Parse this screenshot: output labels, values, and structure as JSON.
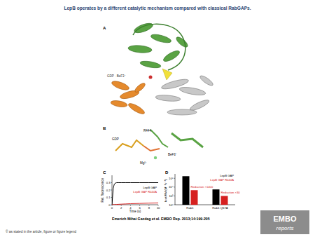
{
  "title": "LepB operates by a different catalytic mechanism compared with classical RabGAPs.",
  "panels": {
    "A": {
      "label": "A",
      "annotations": [
        "GDP · BeF3⁻"
      ]
    },
    "B": {
      "label": "B",
      "annotations": [
        "GDP",
        "R444",
        "BeF3⁻",
        "Mg²⁺"
      ]
    }
  },
  "citation": "Emerich Mihai Gazdag et al. EMBO Rep. 2013;14:199-205",
  "copyright": "© as stated in the article, figure or figure legend",
  "logo": {
    "line1": "EMBO",
    "line2": "reports"
  },
  "chart_data": [
    {
      "type": "line",
      "title": "C",
      "x_label": "Time (s)",
      "y_label": "Rel. fluorescence",
      "x": [
        0,
        0.25,
        0.5,
        0.75,
        1,
        1.5,
        2,
        3,
        4,
        6,
        8,
        10
      ],
      "series": [
        {
          "name": "LepB GAP",
          "color": "#000000",
          "values": [
            0,
            0.22,
            0.28,
            0.295,
            0.3,
            0.3,
            0.3,
            0.3,
            0.3,
            0.3,
            0.3,
            0.3
          ]
        },
        {
          "name": "LepB GAP R444A",
          "color": "#d62020",
          "values": [
            0,
            0.001,
            0.002,
            0.003,
            0.004,
            0.006,
            0.008,
            0.011,
            0.014,
            0.018,
            0.022,
            0.025
          ]
        }
      ],
      "xlim": [
        0,
        10
      ],
      "xticks": [
        0,
        2,
        4,
        6,
        8,
        10
      ],
      "ylim": [
        0,
        0.4
      ],
      "yticks": [
        0,
        0.1,
        0.2,
        0.3
      ],
      "grid": false,
      "legend": "center-right"
    },
    {
      "type": "bar",
      "title": "D",
      "y_label": "kcat/KM (M⁻¹s⁻¹)",
      "categories": [
        "Rab1",
        "Rab1 Q67A"
      ],
      "series": [
        {
          "name": "LepB GAP",
          "color": "#000000",
          "values": [
            3000000,
            3000
          ]
        },
        {
          "name": "LepB GAP R444A",
          "color": "#d62020",
          "values": [
            2000,
            100
          ]
        }
      ],
      "annotations": [
        "Reduction ×1400",
        "Reduction ×30"
      ],
      "log": "y",
      "ylim": [
        1,
        10000000
      ],
      "yticks": [
        {
          "value": 1,
          "label": "10⁰"
        },
        {
          "value": 100,
          "label": "10²"
        },
        {
          "value": 10000,
          "label": "10⁴"
        },
        {
          "value": 1000000,
          "label": "10⁶"
        }
      ],
      "grid": false,
      "legend": "top-right"
    }
  ]
}
